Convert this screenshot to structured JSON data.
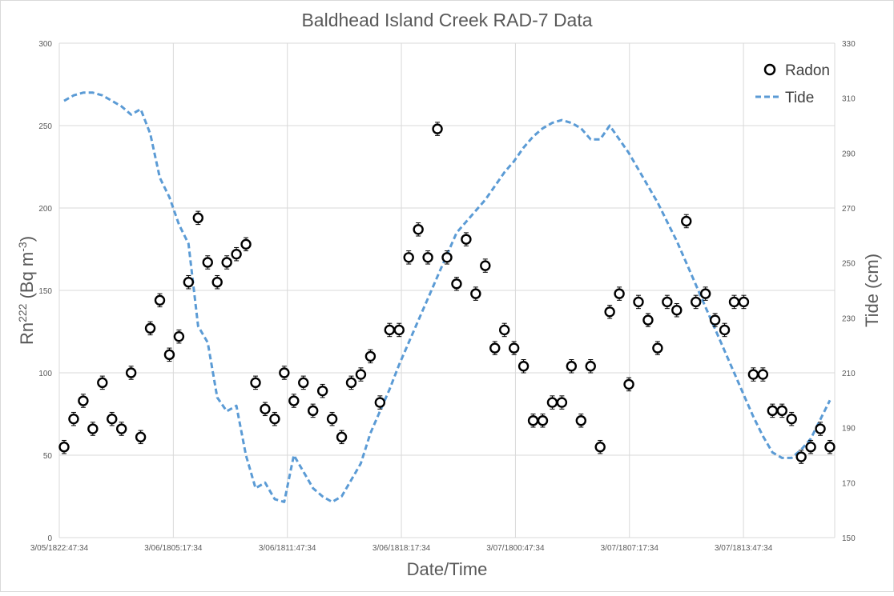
{
  "chart_data": {
    "type": "scatter",
    "title": "Baldhead Island Creek RAD-7 Data",
    "xlabel": "Date/Time",
    "ylabel": "Rn",
    "ylabel_sup": "222",
    "ylabel_unit": " (Bq m",
    "ylabel_unit_sup": "-3",
    "ylabel_close": ")",
    "y2label": "Tide (cm)",
    "ylim": [
      0,
      300
    ],
    "y2lim": [
      150,
      330
    ],
    "yticks": [
      "0",
      "50",
      "100",
      "150",
      "200",
      "250",
      "300"
    ],
    "y2ticks": [
      "150",
      "170",
      "190",
      "210",
      "230",
      "250",
      "270",
      "290",
      "310",
      "330"
    ],
    "xtick_labels": [
      "3/05/1822:47:34",
      "3/06/1805:17:34",
      "3/06/1811:47:34",
      "3/06/1818:17:34",
      "3/07/1800:47:34",
      "3/07/1807:17:34",
      "3/07/1813:47:34"
    ],
    "grid": true,
    "legend": "top-right",
    "series": [
      {
        "name": "Radon",
        "kind": "scatter",
        "marker": "open-circle",
        "color": "#000000",
        "error": 4,
        "values": [
          55,
          72,
          83,
          66,
          94,
          72,
          66,
          100,
          61,
          127,
          144,
          111,
          122,
          155,
          194,
          167,
          155,
          167,
          172,
          178,
          94,
          78,
          72,
          100,
          83,
          94,
          77,
          89,
          72,
          61,
          94,
          99,
          110,
          82,
          126,
          126,
          170,
          187,
          170,
          248,
          170,
          154,
          181,
          148,
          165,
          115,
          126,
          115,
          104,
          71,
          71,
          82,
          82,
          104,
          71,
          104,
          55,
          137,
          148,
          93,
          143,
          132,
          115,
          143,
          138,
          192,
          143,
          148,
          132,
          126,
          143,
          143,
          99,
          99,
          77,
          77,
          72,
          49,
          55,
          66,
          55
        ]
      },
      {
        "name": "Tide",
        "kind": "line",
        "style": "dashed",
        "color": "#5b9bd5",
        "values": [
          309,
          311,
          312,
          312,
          311,
          309,
          307,
          304,
          306,
          297,
          281,
          274,
          264,
          257,
          227,
          221,
          201,
          196,
          198,
          180,
          168,
          170,
          164,
          163,
          180,
          174,
          168,
          165,
          163,
          165,
          171,
          177,
          188,
          196,
          204,
          213,
          221,
          229,
          237,
          245,
          253,
          261,
          265,
          269,
          273,
          278,
          283,
          287,
          292,
          296,
          299,
          301,
          302,
          301,
          299,
          295,
          295,
          300,
          295,
          290,
          284,
          278,
          272,
          265,
          258,
          250,
          242,
          234,
          226,
          218,
          210,
          202,
          194,
          187,
          181,
          179,
          179,
          182,
          186,
          193,
          200
        ]
      }
    ]
  }
}
